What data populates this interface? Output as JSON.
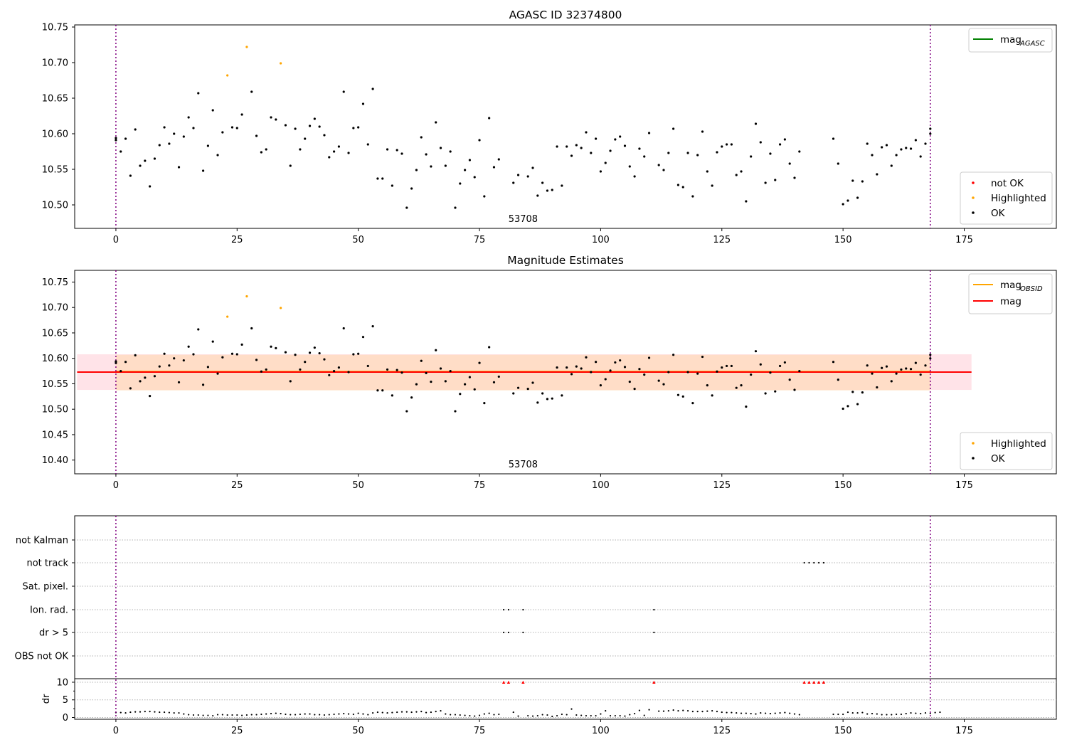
{
  "chart_data": [
    {
      "type": "scatter",
      "title": "AGASC ID 32374800",
      "xlim": [
        -8.5,
        194
      ],
      "ylim": [
        10.467,
        10.753
      ],
      "xticks": [
        0,
        25,
        50,
        75,
        100,
        125,
        150,
        175
      ],
      "yticks": [
        10.5,
        10.55,
        10.6,
        10.65,
        10.7,
        10.75
      ],
      "ytick_labels": [
        "10.50",
        "10.55",
        "10.60",
        "10.65",
        "10.70",
        "10.75"
      ],
      "vlines": [
        0,
        168
      ],
      "vline_color": "#800080",
      "annotation": {
        "text": "53708",
        "x": 84
      },
      "legend_top": {
        "placement": "top-right",
        "entries": [
          {
            "label": "mag",
            "subscript": "AGASC",
            "color": "#008000",
            "kind": "line"
          }
        ]
      },
      "legend_bottom": {
        "placement": "bottom-right",
        "entries": [
          {
            "label": "not OK",
            "color": "#ff0000",
            "kind": "dot"
          },
          {
            "label": "Highlighted",
            "color": "#ffa500",
            "kind": "dot"
          },
          {
            "label": "OK",
            "color": "#000000",
            "kind": "dot"
          }
        ]
      },
      "series": [
        {
          "name": "Highlighted",
          "color": "#ffa500",
          "points": [
            [
              23,
              10.682
            ],
            [
              27,
              10.722
            ],
            [
              34,
              10.699
            ]
          ]
        },
        {
          "name": "OK",
          "color": "#000000",
          "points": [
            [
              0,
              10.594
            ],
            [
              0,
              10.591
            ],
            [
              1,
              10.575
            ],
            [
              2,
              10.593
            ],
            [
              3,
              10.541
            ],
            [
              4,
              10.606
            ],
            [
              5,
              10.555
            ],
            [
              6,
              10.562
            ],
            [
              7,
              10.526
            ],
            [
              8,
              10.565
            ],
            [
              9,
              10.584
            ],
            [
              10,
              10.609
            ],
            [
              11,
              10.586
            ],
            [
              12,
              10.6
            ],
            [
              13,
              10.553
            ],
            [
              14,
              10.596
            ],
            [
              15,
              10.623
            ],
            [
              16,
              10.608
            ],
            [
              17,
              10.657
            ],
            [
              18,
              10.548
            ],
            [
              19,
              10.583
            ],
            [
              20,
              10.633
            ],
            [
              21,
              10.57
            ],
            [
              22,
              10.602
            ],
            [
              24,
              10.609
            ],
            [
              25,
              10.608
            ],
            [
              26,
              10.627
            ],
            [
              28,
              10.659
            ],
            [
              29,
              10.597
            ],
            [
              30,
              10.574
            ],
            [
              31,
              10.578
            ],
            [
              32,
              10.623
            ],
            [
              33,
              10.62
            ],
            [
              35,
              10.612
            ],
            [
              36,
              10.555
            ],
            [
              37,
              10.607
            ],
            [
              38,
              10.578
            ],
            [
              39,
              10.593
            ],
            [
              40,
              10.611
            ],
            [
              41,
              10.621
            ],
            [
              42,
              10.61
            ],
            [
              43,
              10.598
            ],
            [
              44,
              10.567
            ],
            [
              45,
              10.575
            ],
            [
              46,
              10.582
            ],
            [
              47,
              10.659
            ],
            [
              48,
              10.573
            ],
            [
              49,
              10.608
            ],
            [
              50,
              10.609
            ],
            [
              51,
              10.642
            ],
            [
              52,
              10.585
            ],
            [
              53,
              10.663
            ],
            [
              54,
              10.537
            ],
            [
              55,
              10.537
            ],
            [
              56,
              10.578
            ],
            [
              57,
              10.527
            ],
            [
              58,
              10.577
            ],
            [
              59,
              10.572
            ],
            [
              60,
              10.496
            ],
            [
              61,
              10.523
            ],
            [
              62,
              10.549
            ],
            [
              63,
              10.595
            ],
            [
              64,
              10.571
            ],
            [
              65,
              10.554
            ],
            [
              66,
              10.616
            ],
            [
              67,
              10.58
            ],
            [
              68,
              10.555
            ],
            [
              69,
              10.575
            ],
            [
              70,
              10.496
            ],
            [
              71,
              10.53
            ],
            [
              72,
              10.549
            ],
            [
              73,
              10.563
            ],
            [
              74,
              10.539
            ],
            [
              75,
              10.591
            ],
            [
              76,
              10.512
            ],
            [
              77,
              10.622
            ],
            [
              78,
              10.553
            ],
            [
              79,
              10.564
            ],
            [
              82,
              10.531
            ],
            [
              83,
              10.542
            ],
            [
              85,
              10.54
            ],
            [
              86,
              10.552
            ],
            [
              87,
              10.513
            ],
            [
              88,
              10.531
            ],
            [
              89,
              10.52
            ],
            [
              90,
              10.521
            ],
            [
              91,
              10.582
            ],
            [
              92,
              10.527
            ],
            [
              93,
              10.582
            ],
            [
              94,
              10.569
            ],
            [
              95,
              10.584
            ],
            [
              96,
              10.58
            ],
            [
              97,
              10.602
            ],
            [
              98,
              10.573
            ],
            [
              99,
              10.593
            ],
            [
              100,
              10.547
            ],
            [
              101,
              10.559
            ],
            [
              102,
              10.576
            ],
            [
              103,
              10.592
            ],
            [
              104,
              10.596
            ],
            [
              105,
              10.583
            ],
            [
              106,
              10.554
            ],
            [
              107,
              10.54
            ],
            [
              108,
              10.579
            ],
            [
              109,
              10.568
            ],
            [
              110,
              10.601
            ],
            [
              112,
              10.556
            ],
            [
              113,
              10.549
            ],
            [
              114,
              10.573
            ],
            [
              115,
              10.607
            ],
            [
              116,
              10.528
            ],
            [
              117,
              10.525
            ],
            [
              118,
              10.573
            ],
            [
              119,
              10.512
            ],
            [
              120,
              10.57
            ],
            [
              121,
              10.603
            ],
            [
              122,
              10.547
            ],
            [
              123,
              10.527
            ],
            [
              124,
              10.574
            ],
            [
              125,
              10.582
            ],
            [
              126,
              10.585
            ],
            [
              127,
              10.585
            ],
            [
              128,
              10.542
            ],
            [
              129,
              10.547
            ],
            [
              130,
              10.505
            ],
            [
              131,
              10.568
            ],
            [
              132,
              10.614
            ],
            [
              133,
              10.588
            ],
            [
              134,
              10.531
            ],
            [
              135,
              10.572
            ],
            [
              136,
              10.535
            ],
            [
              137,
              10.585
            ],
            [
              138,
              10.592
            ],
            [
              139,
              10.558
            ],
            [
              140,
              10.538
            ],
            [
              141,
              10.575
            ],
            [
              148,
              10.593
            ],
            [
              149,
              10.558
            ],
            [
              150,
              10.501
            ],
            [
              151,
              10.506
            ],
            [
              152,
              10.534
            ],
            [
              153,
              10.51
            ],
            [
              154,
              10.533
            ],
            [
              155,
              10.586
            ],
            [
              156,
              10.57
            ],
            [
              157,
              10.543
            ],
            [
              158,
              10.581
            ],
            [
              159,
              10.584
            ],
            [
              160,
              10.555
            ],
            [
              161,
              10.57
            ],
            [
              162,
              10.578
            ],
            [
              163,
              10.58
            ],
            [
              164,
              10.579
            ],
            [
              165,
              10.591
            ],
            [
              166,
              10.568
            ],
            [
              167,
              10.586
            ],
            [
              168,
              10.607
            ],
            [
              168,
              10.6
            ]
          ]
        }
      ]
    },
    {
      "type": "scatter",
      "title": "Magnitude Estimates",
      "xlim": [
        -8.5,
        194
      ],
      "ylim": [
        10.373,
        10.773
      ],
      "xticks": [
        0,
        25,
        50,
        75,
        100,
        125,
        150,
        175
      ],
      "yticks": [
        10.4,
        10.45,
        10.5,
        10.55,
        10.6,
        10.65,
        10.7,
        10.75
      ],
      "ytick_labels": [
        "10.40",
        "10.45",
        "10.50",
        "10.55",
        "10.60",
        "10.65",
        "10.70",
        "10.75"
      ],
      "vlines": [
        0,
        168
      ],
      "annotation": {
        "text": "53708",
        "x": 84
      },
      "bands": [
        {
          "label": "mag",
          "x0": -8,
          "x1": 176.5,
          "y0": 10.538,
          "y1": 10.608,
          "color": "#ffc0cb"
        },
        {
          "label": "mag OBSID",
          "x0": 0,
          "x1": 168,
          "y0": 10.537,
          "y1": 10.607,
          "color": "#ffdab9"
        }
      ],
      "lines": [
        {
          "name": "mag OBSID",
          "color": "#ffa500",
          "x0": 0,
          "x1": 168,
          "y": 10.574
        },
        {
          "name": "mag",
          "color": "#ff0000",
          "x0": -8,
          "x1": 176.5,
          "y": 10.573
        }
      ],
      "legend_top": {
        "placement": "top-right",
        "entries": [
          {
            "label": "mag",
            "subscript": "OBSID",
            "color": "#ffa500",
            "kind": "line"
          },
          {
            "label": "mag",
            "subscript": "",
            "color": "#ff0000",
            "kind": "line"
          }
        ]
      },
      "legend_bottom": {
        "placement": "bottom-right",
        "entries": [
          {
            "label": "Highlighted",
            "color": "#ffa500",
            "kind": "dot"
          },
          {
            "label": "OK",
            "color": "#000000",
            "kind": "dot"
          }
        ]
      },
      "series_ref": "same points as the AGASC ID 32374800 panel"
    },
    {
      "type": "scatter",
      "ylabel": "dr",
      "xlim": [
        -8.5,
        194
      ],
      "xticks": [
        0,
        25,
        50,
        75,
        100,
        125,
        150,
        175
      ],
      "vlines": [
        0,
        168
      ],
      "flag_categories": [
        "not Kalman",
        "not track",
        "Sat. pixel.",
        "Ion. rad.",
        "dr > 5",
        "OBS not OK"
      ],
      "flags": {
        "not Kalman": [],
        "not track": [
          142,
          143,
          144,
          145,
          146
        ],
        "Sat. pixel.": [],
        "Ion. rad.": [
          80,
          81,
          84,
          111
        ],
        "dr > 5": [
          80,
          81,
          84,
          111
        ],
        "OBS not OK": []
      },
      "dr_ylim": [
        -0.5,
        11
      ],
      "dr_yticks": [
        0,
        5,
        10
      ],
      "dr_clipped_markers": {
        "value": 10,
        "color": "#ff0000",
        "x": [
          80,
          81,
          84,
          111,
          142,
          143,
          144,
          145,
          146
        ]
      },
      "dr": [
        1.4,
        1.4,
        1.3,
        1.5,
        1.6,
        1.6,
        1.7,
        1.7,
        1.6,
        1.5,
        1.5,
        1.4,
        1.3,
        1.3,
        1.0,
        0.8,
        0.7,
        0.7,
        0.6,
        0.6,
        0.5,
        0.8,
        0.8,
        0.7,
        0.7,
        0.7,
        0.6,
        0.7,
        0.8,
        0.8,
        0.9,
        1.0,
        1.1,
        1.2,
        1.1,
        0.9,
        0.8,
        0.8,
        0.9,
        1.0,
        1.0,
        0.8,
        0.8,
        0.7,
        0.8,
        0.9,
        1.0,
        1.1,
        1.0,
        0.9,
        1.2,
        1.0,
        0.8,
        1.3,
        1.5,
        1.4,
        1.3,
        1.4,
        1.5,
        1.6,
        1.6,
        1.5,
        1.6,
        1.7,
        1.4,
        1.5,
        1.7,
        1.9,
        1.0,
        0.8,
        0.8,
        0.7,
        0.6,
        0.5,
        0.4,
        0.6,
        1.0,
        1.2,
        0.8,
        0.9,
        null,
        null,
        1.5,
        0.4,
        null,
        0.5,
        0.4,
        0.5,
        0.8,
        0.7,
        0.3,
        0.5,
        0.9,
        0.8,
        2.4,
        0.7,
        0.6,
        0.5,
        0.5,
        0.5,
        1.0,
        1.9,
        0.5,
        0.5,
        0.5,
        0.4,
        0.8,
        1.1,
        2.0,
        0.6,
        2.2,
        null,
        1.8,
        1.8,
        1.9,
        2.1,
        1.9,
        2.0,
        1.9,
        1.7,
        1.7,
        1.7,
        1.8,
        1.9,
        1.7,
        1.5,
        1.4,
        1.4,
        1.3,
        1.2,
        1.2,
        1.1,
        1.0,
        1.3,
        1.2,
        1.1,
        1.2,
        1.3,
        1.4,
        1.2,
        1.0,
        0.8,
        null,
        null,
        null,
        null,
        null,
        null,
        0.9,
        0.9,
        0.9,
        1.5,
        1.3,
        1.3,
        1.4,
        1.0,
        1.1,
        1.0,
        0.8,
        0.8,
        0.8,
        0.9,
        0.9,
        1.1,
        1.3,
        1.2,
        1.1,
        1.3,
        1.2,
        1.4,
        1.5
      ]
    }
  ]
}
